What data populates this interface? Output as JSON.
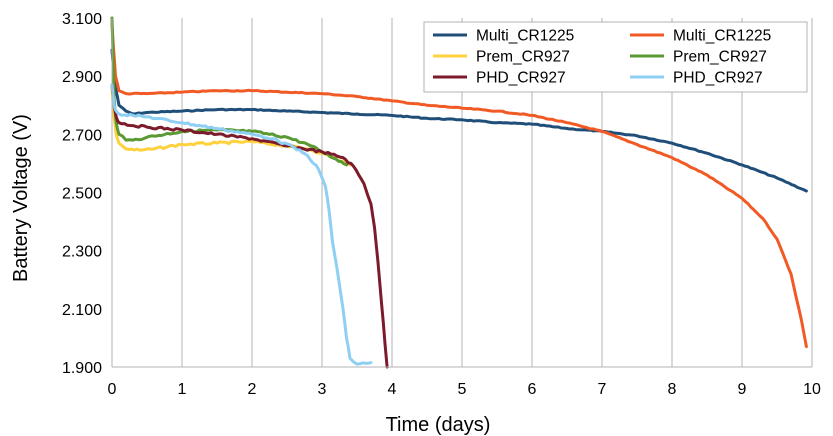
{
  "chart_data": {
    "type": "line",
    "xlabel": "Time (days)",
    "ylabel": "Battery Voltage (V)",
    "xlim": [
      0,
      10
    ],
    "ylim": [
      1.9,
      3.1
    ],
    "x_ticks": [
      0,
      1,
      2,
      3,
      4,
      5,
      6,
      7,
      8,
      9,
      10
    ],
    "y_ticks": [
      1.9,
      2.1,
      2.3,
      2.5,
      2.7,
      2.9,
      3.1
    ],
    "y_tick_labels": [
      "1.900",
      "2.100",
      "2.300",
      "2.500",
      "2.700",
      "2.900",
      "3.100"
    ],
    "grid": "vertical",
    "legend_position": "top-right",
    "series": [
      {
        "name": "Multi_CR1225",
        "color": "#1f4e79",
        "points": [
          [
            0,
            2.99
          ],
          [
            0.02,
            2.93
          ],
          [
            0.05,
            2.86
          ],
          [
            0.1,
            2.8
          ],
          [
            0.2,
            2.78
          ],
          [
            0.3,
            2.77
          ],
          [
            0.5,
            2.775
          ],
          [
            1,
            2.78
          ],
          [
            1.5,
            2.785
          ],
          [
            2,
            2.785
          ],
          [
            2.5,
            2.78
          ],
          [
            3,
            2.775
          ],
          [
            3.5,
            2.77
          ],
          [
            4,
            2.765
          ],
          [
            4.5,
            2.755
          ],
          [
            5,
            2.75
          ],
          [
            5.5,
            2.74
          ],
          [
            6,
            2.735
          ],
          [
            6.5,
            2.72
          ],
          [
            7,
            2.71
          ],
          [
            7.5,
            2.695
          ],
          [
            8,
            2.67
          ],
          [
            8.5,
            2.635
          ],
          [
            9,
            2.595
          ],
          [
            9.5,
            2.55
          ],
          [
            9.92,
            2.505
          ]
        ]
      },
      {
        "name": "Multi_CR1225",
        "color": "#f15a24",
        "points": [
          [
            0,
            3.08
          ],
          [
            0.02,
            3.0
          ],
          [
            0.05,
            2.9
          ],
          [
            0.1,
            2.85
          ],
          [
            0.2,
            2.84
          ],
          [
            0.5,
            2.84
          ],
          [
            1,
            2.845
          ],
          [
            1.5,
            2.85
          ],
          [
            2,
            2.85
          ],
          [
            2.5,
            2.845
          ],
          [
            3,
            2.84
          ],
          [
            3.5,
            2.83
          ],
          [
            4,
            2.815
          ],
          [
            4.5,
            2.8
          ],
          [
            5,
            2.79
          ],
          [
            5.5,
            2.78
          ],
          [
            6,
            2.765
          ],
          [
            6.5,
            2.74
          ],
          [
            7,
            2.71
          ],
          [
            7.5,
            2.665
          ],
          [
            8,
            2.62
          ],
          [
            8.5,
            2.56
          ],
          [
            9,
            2.48
          ],
          [
            9.3,
            2.41
          ],
          [
            9.5,
            2.34
          ],
          [
            9.7,
            2.22
          ],
          [
            9.85,
            2.06
          ],
          [
            9.92,
            1.97
          ]
        ]
      },
      {
        "name": "Prem_CR927",
        "color": "#ffd13d",
        "points": [
          [
            0,
            2.86
          ],
          [
            0.03,
            2.76
          ],
          [
            0.06,
            2.7
          ],
          [
            0.1,
            2.67
          ],
          [
            0.2,
            2.65
          ],
          [
            0.4,
            2.645
          ],
          [
            0.6,
            2.65
          ],
          [
            1,
            2.665
          ],
          [
            1.5,
            2.67
          ],
          [
            2,
            2.675
          ],
          [
            2.5,
            2.66
          ],
          [
            2.8,
            2.65
          ],
          [
            3,
            2.635
          ],
          [
            3.2,
            2.615
          ],
          [
            3.4,
            2.595
          ]
        ]
      },
      {
        "name": "Prem_CR927",
        "color": "#5b9a32",
        "points": [
          [
            0,
            3.1
          ],
          [
            0.03,
            2.82
          ],
          [
            0.06,
            2.74
          ],
          [
            0.1,
            2.7
          ],
          [
            0.2,
            2.68
          ],
          [
            0.3,
            2.68
          ],
          [
            0.5,
            2.69
          ],
          [
            1,
            2.71
          ],
          [
            1.5,
            2.715
          ],
          [
            2,
            2.71
          ],
          [
            2.5,
            2.69
          ],
          [
            2.8,
            2.665
          ],
          [
            3,
            2.64
          ],
          [
            3.2,
            2.615
          ],
          [
            3.35,
            2.595
          ]
        ]
      },
      {
        "name": "PHD_CR927",
        "color": "#7b1b2b",
        "points": [
          [
            0,
            2.87
          ],
          [
            0.03,
            2.8
          ],
          [
            0.06,
            2.76
          ],
          [
            0.1,
            2.74
          ],
          [
            0.3,
            2.73
          ],
          [
            0.5,
            2.725
          ],
          [
            1,
            2.715
          ],
          [
            1.5,
            2.7
          ],
          [
            2,
            2.685
          ],
          [
            2.5,
            2.66
          ],
          [
            3,
            2.64
          ],
          [
            3.3,
            2.62
          ],
          [
            3.45,
            2.59
          ],
          [
            3.6,
            2.53
          ],
          [
            3.7,
            2.46
          ],
          [
            3.75,
            2.38
          ],
          [
            3.8,
            2.26
          ],
          [
            3.85,
            2.12
          ],
          [
            3.9,
            1.98
          ],
          [
            3.93,
            1.9
          ]
        ]
      },
      {
        "name": "PHD_CR927",
        "color": "#8ecff3",
        "points": [
          [
            0,
            2.87
          ],
          [
            0.03,
            2.8
          ],
          [
            0.06,
            2.78
          ],
          [
            0.1,
            2.77
          ],
          [
            0.3,
            2.765
          ],
          [
            0.5,
            2.76
          ],
          [
            1,
            2.74
          ],
          [
            1.5,
            2.72
          ],
          [
            2,
            2.7
          ],
          [
            2.3,
            2.685
          ],
          [
            2.6,
            2.655
          ],
          [
            2.8,
            2.625
          ],
          [
            2.95,
            2.58
          ],
          [
            3.05,
            2.52
          ],
          [
            3.1,
            2.44
          ],
          [
            3.15,
            2.33
          ],
          [
            3.22,
            2.23
          ],
          [
            3.3,
            2.1
          ],
          [
            3.35,
            2.0
          ],
          [
            3.4,
            1.93
          ],
          [
            3.5,
            1.91
          ],
          [
            3.7,
            1.915
          ]
        ]
      }
    ]
  }
}
